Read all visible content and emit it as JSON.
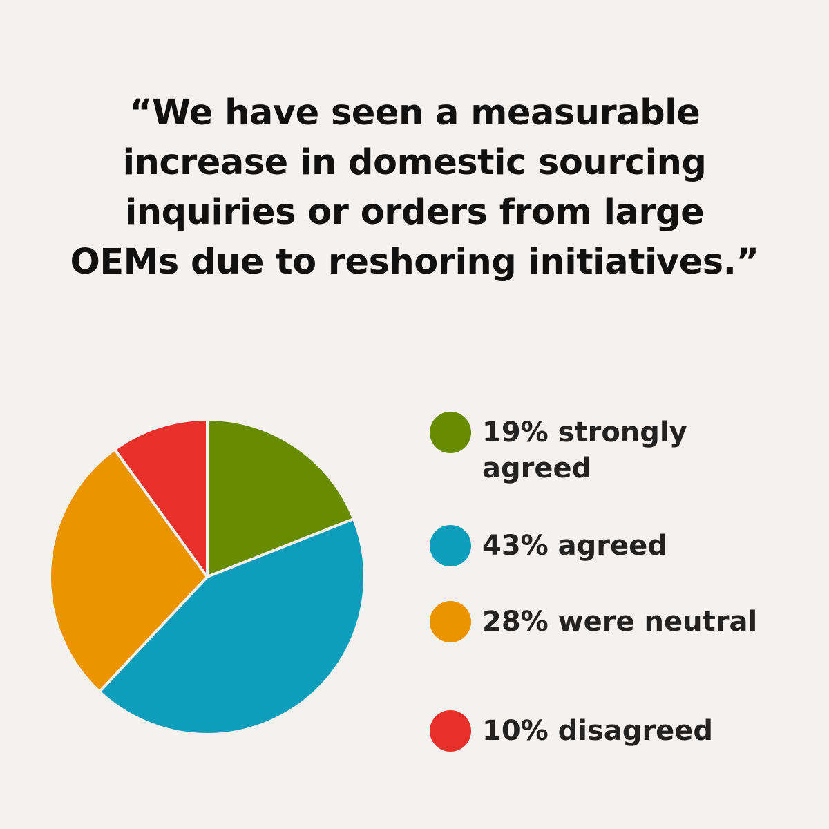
{
  "quote": "“We have seen a measurable increase in domestic sourcing inquiries or orders from large OEMs due to reshoring initiatives.”",
  "chart_data": {
    "type": "pie",
    "categories": [
      "strongly agreed",
      "agreed",
      "were neutral",
      "disagreed"
    ],
    "values": [
      19,
      43,
      28,
      10
    ],
    "unit": "%",
    "colors": [
      "#688c00",
      "#0e9ebc",
      "#ec9300",
      "#e8302a"
    ],
    "slice_border_color": "#f5f1ee",
    "start": "12 o'clock",
    "direction": "clockwise",
    "legend_position": "right",
    "legend_labels": [
      "19% strongly agreed",
      "43% agreed",
      "28% were neutral",
      "10% disagreed"
    ]
  }
}
